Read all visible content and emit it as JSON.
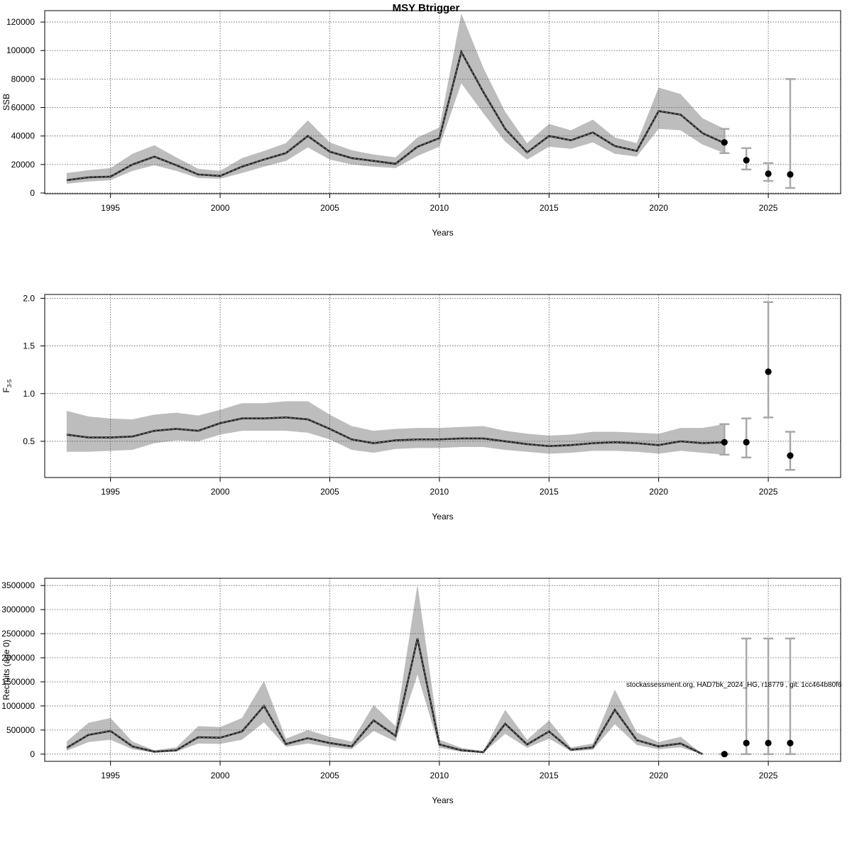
{
  "title": "MSY Btrigger",
  "watermark": "stockassessment.org, HAD7bk_2024_HG, r18779 , git: 1cc464b80f6",
  "colors": {
    "band": "#bdbdbd",
    "line": "#000000",
    "errorbar": "#a8a8a8",
    "grid": "#555555"
  },
  "chart_data": [
    {
      "type": "line",
      "xlabel": "Years",
      "ylabel": "SSB",
      "xlim": [
        1992,
        2028.3
      ],
      "ylim": [
        -500,
        128000
      ],
      "xticks": [
        1995,
        2000,
        2005,
        2010,
        2015,
        2020,
        2025
      ],
      "yticks": [
        0,
        20000,
        40000,
        60000,
        80000,
        100000,
        120000
      ],
      "x": [
        1993,
        1994,
        1995,
        1996,
        1997,
        1998,
        1999,
        2000,
        2001,
        2002,
        2003,
        2004,
        2005,
        2006,
        2007,
        2008,
        2009,
        2010,
        2011,
        2012,
        2013,
        2014,
        2015,
        2016,
        2017,
        2018,
        2019,
        2020,
        2021,
        2022,
        2023
      ],
      "estimate": [
        9000,
        11000,
        11500,
        20000,
        25500,
        19500,
        13000,
        12000,
        18500,
        23500,
        28000,
        40000,
        29000,
        24500,
        22500,
        20500,
        32500,
        38500,
        99000,
        71000,
        45000,
        28500,
        40000,
        37000,
        42500,
        33000,
        29500,
        57500,
        55000,
        42000,
        35000
      ],
      "lower": [
        6500,
        8000,
        9000,
        15500,
        19500,
        15500,
        10500,
        10000,
        14000,
        18500,
        22500,
        32000,
        23500,
        20000,
        18500,
        17500,
        26000,
        32500,
        77000,
        56000,
        36000,
        23500,
        32500,
        31000,
        35500,
        27500,
        25500,
        45000,
        44000,
        34000,
        28000
      ],
      "upper": [
        14000,
        16000,
        17500,
        27500,
        33500,
        25000,
        17000,
        15500,
        24500,
        29500,
        35000,
        51000,
        35500,
        30000,
        27000,
        25000,
        39000,
        46000,
        126000,
        88000,
        57000,
        35000,
        48500,
        44000,
        51500,
        39000,
        35000,
        74000,
        69500,
        52500,
        45000
      ],
      "forecast": [
        {
          "x": 2023,
          "value": 35500,
          "low": 28000,
          "high": 45000
        },
        {
          "x": 2024,
          "value": 23000,
          "low": 16500,
          "high": 31500
        },
        {
          "x": 2025,
          "value": 13500,
          "low": 8500,
          "high": 21000
        },
        {
          "x": 2026,
          "value": 13000,
          "low": 3500,
          "high": 80000
        }
      ]
    },
    {
      "type": "line",
      "xlabel": "Years",
      "ylabel": "F",
      "ylabel_sub": "3-5",
      "xlim": [
        1992,
        2028.3
      ],
      "ylim": [
        0.12,
        2.04
      ],
      "xticks": [
        1995,
        2000,
        2005,
        2010,
        2015,
        2020,
        2025
      ],
      "yticks": [
        0.5,
        1.0,
        1.5,
        2.0
      ],
      "ytick_labels": [
        "0.5",
        "1.0",
        "1.5",
        "2.0"
      ],
      "x": [
        1993,
        1994,
        1995,
        1996,
        1997,
        1998,
        1999,
        2000,
        2001,
        2002,
        2003,
        2004,
        2005,
        2006,
        2007,
        2008,
        2009,
        2010,
        2011,
        2012,
        2013,
        2014,
        2015,
        2016,
        2017,
        2018,
        2019,
        2020,
        2021,
        2022,
        2023
      ],
      "estimate": [
        0.57,
        0.54,
        0.54,
        0.55,
        0.61,
        0.63,
        0.61,
        0.69,
        0.74,
        0.74,
        0.75,
        0.73,
        0.63,
        0.52,
        0.48,
        0.51,
        0.52,
        0.52,
        0.53,
        0.53,
        0.5,
        0.47,
        0.45,
        0.46,
        0.48,
        0.49,
        0.48,
        0.46,
        0.5,
        0.48,
        0.49
      ],
      "lower": [
        0.39,
        0.39,
        0.4,
        0.41,
        0.48,
        0.51,
        0.5,
        0.57,
        0.61,
        0.61,
        0.61,
        0.59,
        0.52,
        0.41,
        0.38,
        0.42,
        0.43,
        0.43,
        0.44,
        0.44,
        0.41,
        0.39,
        0.37,
        0.38,
        0.4,
        0.4,
        0.39,
        0.37,
        0.4,
        0.38,
        0.36
      ],
      "upper": [
        0.82,
        0.76,
        0.74,
        0.73,
        0.78,
        0.8,
        0.77,
        0.83,
        0.9,
        0.9,
        0.92,
        0.92,
        0.78,
        0.66,
        0.61,
        0.63,
        0.64,
        0.64,
        0.65,
        0.66,
        0.61,
        0.58,
        0.56,
        0.57,
        0.6,
        0.6,
        0.59,
        0.58,
        0.64,
        0.64,
        0.68
      ],
      "forecast": [
        {
          "x": 2023,
          "value": 0.49,
          "low": 0.36,
          "high": 0.68
        },
        {
          "x": 2024,
          "value": 0.49,
          "low": 0.33,
          "high": 0.74
        },
        {
          "x": 2025,
          "value": 1.23,
          "low": 0.75,
          "high": 1.96
        },
        {
          "x": 2026,
          "value": 0.35,
          "low": 0.2,
          "high": 0.6
        }
      ]
    },
    {
      "type": "line",
      "xlabel": "Years",
      "ylabel": "Recruits (age 0)",
      "xlim": [
        1992,
        2028.3
      ],
      "ylim": [
        -150000,
        3650000
      ],
      "xticks": [
        1995,
        2000,
        2005,
        2010,
        2015,
        2020,
        2025
      ],
      "yticks": [
        0,
        500000,
        1000000,
        1500000,
        2000000,
        2500000,
        3000000,
        3500000
      ],
      "x": [
        1993,
        1994,
        1995,
        1996,
        1997,
        1998,
        1999,
        2000,
        2001,
        2002,
        2003,
        2004,
        2005,
        2006,
        2007,
        2008,
        2009,
        2010,
        2011,
        2012,
        2013,
        2014,
        2015,
        2016,
        2017,
        2018,
        2019,
        2020,
        2021,
        2022
      ],
      "estimate": [
        130000,
        400000,
        480000,
        160000,
        50000,
        80000,
        350000,
        340000,
        470000,
        1000000,
        210000,
        330000,
        230000,
        160000,
        700000,
        380000,
        2400000,
        200000,
        80000,
        40000,
        630000,
        200000,
        470000,
        90000,
        140000,
        920000,
        290000,
        160000,
        220000,
        0
      ],
      "lower": [
        70000,
        250000,
        300000,
        100000,
        30000,
        50000,
        220000,
        210000,
        300000,
        660000,
        150000,
        220000,
        150000,
        100000,
        480000,
        260000,
        1650000,
        130000,
        50000,
        25000,
        420000,
        130000,
        320000,
        60000,
        90000,
        620000,
        190000,
        100000,
        140000,
        0
      ],
      "upper": [
        260000,
        650000,
        750000,
        260000,
        80000,
        140000,
        580000,
        560000,
        750000,
        1520000,
        320000,
        500000,
        360000,
        260000,
        1020000,
        580000,
        3520000,
        300000,
        130000,
        60000,
        920000,
        300000,
        700000,
        140000,
        220000,
        1340000,
        450000,
        250000,
        360000,
        0
      ],
      "forecast": [
        {
          "x": 2023,
          "value": 0,
          "low": 0,
          "high": 0
        },
        {
          "x": 2024,
          "value": 230000,
          "low": 0,
          "high": 2400000
        },
        {
          "x": 2025,
          "value": 230000,
          "low": 0,
          "high": 2400000
        },
        {
          "x": 2026,
          "value": 230000,
          "low": 0,
          "high": 2400000
        }
      ]
    }
  ]
}
